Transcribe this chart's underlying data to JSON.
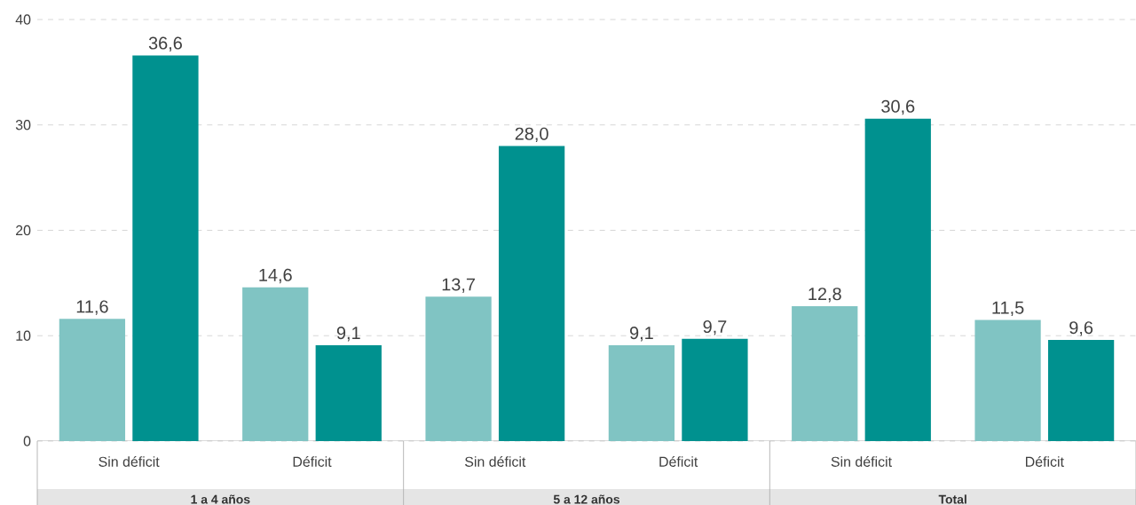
{
  "chart_data": {
    "type": "bar",
    "categories": [
      "Sin déficit",
      "Déficit",
      "Sin déficit",
      "Déficit",
      "Sin déficit",
      "Déficit"
    ],
    "series": [
      {
        "color": "#80c4c3",
        "values": [
          11.6,
          14.6,
          13.7,
          9.1,
          12.8,
          11.5
        ],
        "value_labels": [
          "11,6",
          "14,6",
          "13,7",
          "9,1",
          "12,8",
          "11,5"
        ]
      },
      {
        "color": "#00918f",
        "values": [
          36.6,
          9.1,
          28.0,
          9.7,
          30.6,
          9.6
        ],
        "value_labels": [
          "36,6",
          "9,1",
          "28,0",
          "9,7",
          "30,6",
          "9,6"
        ]
      }
    ],
    "ylim": [
      0,
      40
    ],
    "yticks": [
      0,
      10,
      20,
      30,
      40
    ],
    "grid": "y",
    "annotations": [
      "1 a 4 años",
      "5 a 12 años",
      "Total"
    ]
  }
}
